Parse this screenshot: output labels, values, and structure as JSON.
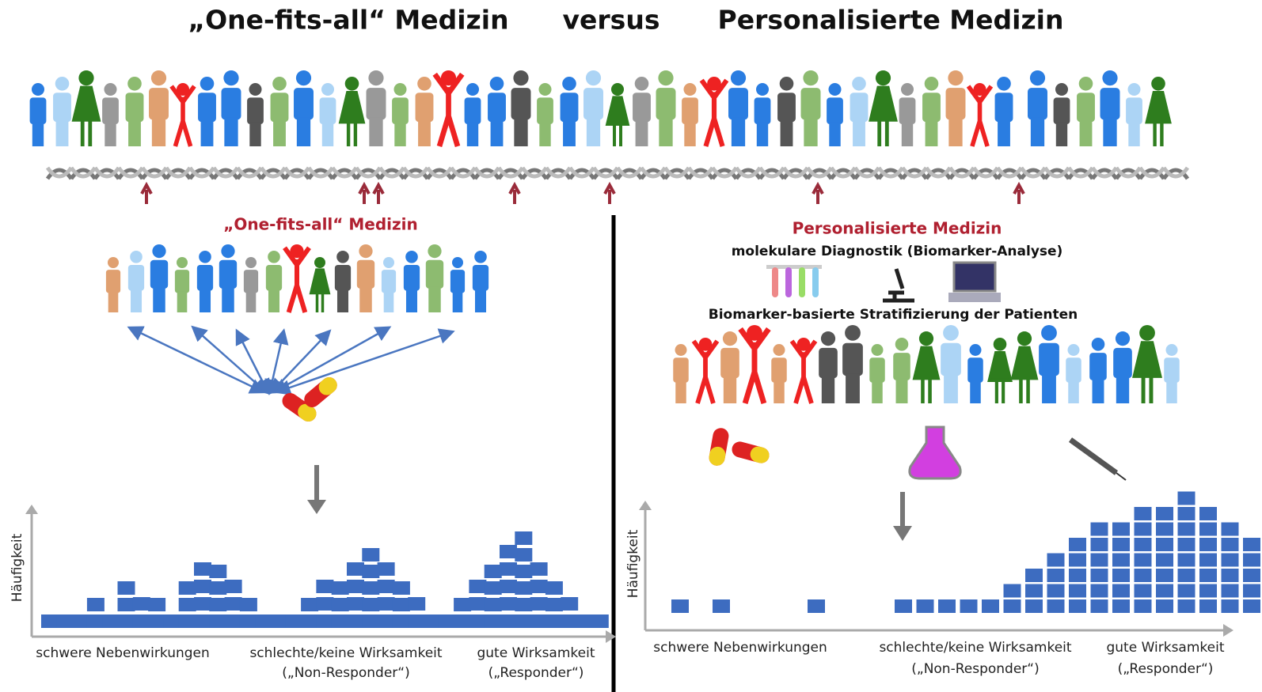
{
  "header": {
    "left": "„One-fits-all“ Medizin",
    "middle": "versus",
    "right": "Personalisierte Medizin"
  },
  "left_panel": {
    "title": "„One-fits-all“ Medizin",
    "y_axis": "Häufigkeit",
    "labels": [
      "schwere Nebenwirkungen",
      "schlechte/keine Wirksamkeit",
      "(„Non-Responder“)",
      "gute Wirksamkeit",
      "(„Responder“)"
    ]
  },
  "right_panel": {
    "title": "Personalisierte Medizin",
    "subtitle": "molekulare Diagnostik (Biomarker-Analyse)",
    "stratification": "Biomarker-basierte Stratifizierung der Patienten",
    "y_axis": "Häufigkeit",
    "labels": [
      "schwere Nebenwirkungen",
      "schlechte/keine Wirksamkeit",
      "(„Non-Responder“)",
      "gute Wirksamkeit",
      "(„Responder“)"
    ]
  }
}
